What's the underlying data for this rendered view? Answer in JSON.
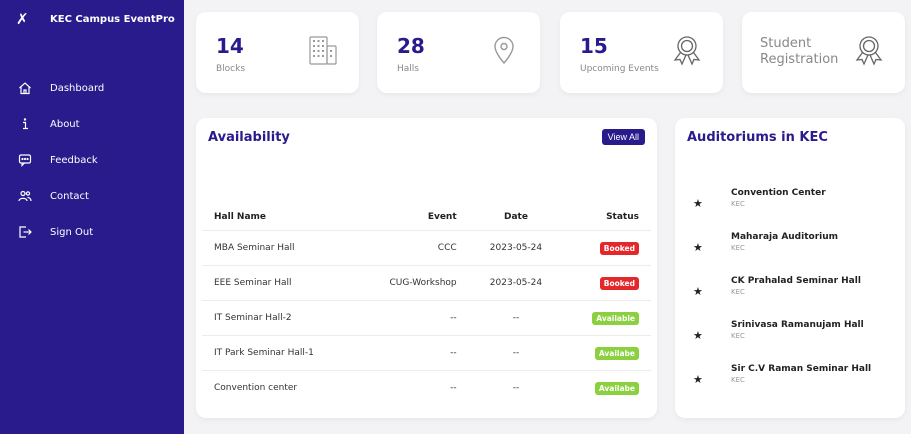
{
  "brand": {
    "logo": "✗",
    "name": "KEC Campus EventPro"
  },
  "sidebar": {
    "items": [
      {
        "label": "Dashboard",
        "icon": "home-icon"
      },
      {
        "label": "About",
        "icon": "info-icon"
      },
      {
        "label": "Feedback",
        "icon": "feedback-icon"
      },
      {
        "label": "Contact",
        "icon": "contacts-icon"
      },
      {
        "label": "Sign Out",
        "icon": "sign-out-icon"
      }
    ]
  },
  "stats": [
    {
      "number": "14",
      "label": "Blocks",
      "icon": "building-icon"
    },
    {
      "number": "28",
      "label": "Halls",
      "icon": "location-pin-icon"
    },
    {
      "number": "15",
      "label": "Upcoming Events",
      "icon": "award-icon"
    }
  ],
  "registration": {
    "label": "Student Registration",
    "icon": "award-icon"
  },
  "availability": {
    "title": "Availability",
    "view_all": "View All",
    "columns": [
      "Hall Name",
      "Event",
      "Date",
      "Status"
    ],
    "rows": [
      {
        "hall": "MBA Seminar Hall",
        "event": "CCC",
        "date": "2023-05-24",
        "status": "Booked",
        "status_color": "#e4272b"
      },
      {
        "hall": "EEE Seminar Hall",
        "event": "CUG-Workshop",
        "date": "2023-05-24",
        "status": "Booked",
        "status_color": "#e4272b"
      },
      {
        "hall": "IT Seminar Hall-2",
        "event": "--",
        "date": "--",
        "status": "Available",
        "status_color": "#8ad03f"
      },
      {
        "hall": "IT Park Seminar Hall-1",
        "event": "--",
        "date": "--",
        "status": "Availabe",
        "status_color": "#8ad03f"
      },
      {
        "hall": "Convention center",
        "event": "--",
        "date": "--",
        "status": "Availabe",
        "status_color": "#8ad03f"
      }
    ]
  },
  "auditoriums": {
    "title": "Auditoriums in KEC",
    "items": [
      {
        "name": "Convention Center",
        "sub": "KEC"
      },
      {
        "name": "Maharaja Auditorium",
        "sub": "KEC"
      },
      {
        "name": "CK Prahalad Seminar Hall",
        "sub": "KEC"
      },
      {
        "name": "Srinivasa Ramanujam Hall",
        "sub": "KEC"
      },
      {
        "name": "Sir C.V Raman Seminar Hall",
        "sub": "KEC"
      }
    ]
  },
  "colors": {
    "primary": "#2a1b8c",
    "booked": "#e4272b",
    "available": "#8ad03f",
    "background": "#f3f3f6"
  }
}
